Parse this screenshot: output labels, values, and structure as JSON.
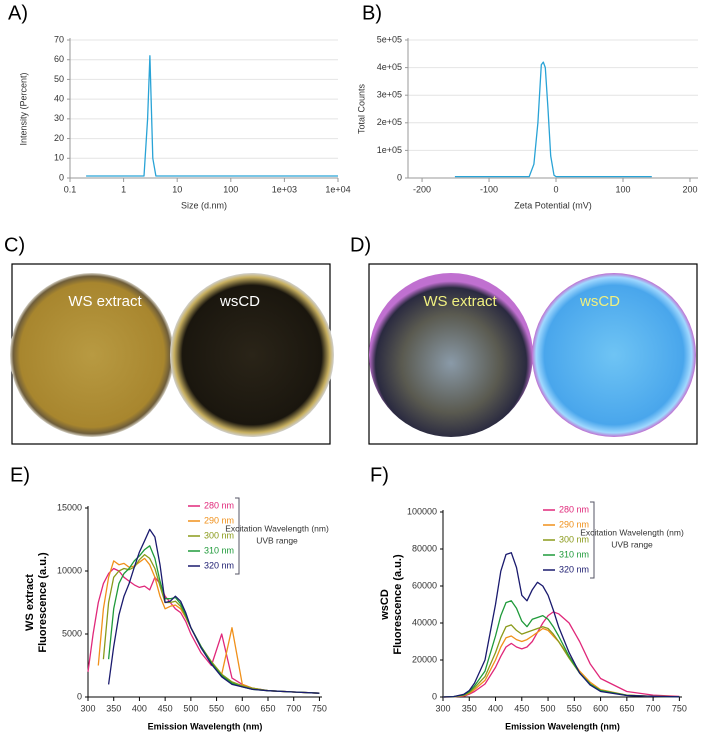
{
  "chart_data": [
    {
      "type": "line",
      "panel": "A)",
      "xlabel": "Size (d.nm)",
      "ylabel": "Intensity (Percent)",
      "xscale": "log",
      "xlim": [
        0.1,
        10000
      ],
      "ylim": [
        0,
        70
      ],
      "xticks": [
        0.1,
        1,
        10,
        100,
        {
          "value": 1000,
          "label": "1e+03"
        },
        {
          "value": 10000,
          "label": "1e+04"
        }
      ],
      "yticks": [
        0,
        10,
        20,
        30,
        40,
        50,
        60,
        70
      ],
      "grid": true,
      "x": [
        0.2,
        2.4,
        2.8,
        3.1,
        3.5,
        4,
        10,
        100,
        1000,
        10000
      ],
      "series": [
        {
          "color": "#29a3d6",
          "values": [
            1,
            1,
            30,
            62,
            10,
            1,
            1,
            1,
            1,
            1
          ]
        }
      ]
    },
    {
      "type": "line",
      "panel": "B)",
      "xlabel": "Zeta Potential (mV)",
      "ylabel": "Total Counts",
      "xlim": [
        -221,
        212
      ],
      "ylim": [
        0,
        500000
      ],
      "xticks": [
        -200,
        -100,
        0,
        100,
        200
      ],
      "yticks": [
        0,
        {
          "value": 100000,
          "label": "1e+05"
        },
        {
          "value": 200000,
          "label": "2e+05"
        },
        {
          "value": 300000,
          "label": "3e+05"
        },
        {
          "value": 400000,
          "label": "4e+05"
        },
        {
          "value": 500000,
          "label": "5e+05"
        }
      ],
      "grid": true,
      "x": [
        -151,
        -40,
        -33,
        -27,
        -22,
        -19,
        -16,
        -12,
        -8,
        -3,
        0,
        143
      ],
      "series": [
        {
          "color": "#29a3d6",
          "values": [
            5000,
            5000,
            50000,
            200000,
            410000,
            420000,
            400000,
            250000,
            80000,
            10000,
            5000,
            5000
          ]
        }
      ]
    },
    {
      "type": "line",
      "panel": "E)",
      "xlabel": "Emission Wavelength (nm)",
      "ylabel": [
        "WS extract",
        "Fluorescence (a.u.)"
      ],
      "xlim": [
        300,
        755
      ],
      "ylim": [
        0,
        15000
      ],
      "xticks": [
        300,
        350,
        400,
        450,
        500,
        550,
        600,
        650,
        700,
        750
      ],
      "yticks": [
        0,
        5000,
        10000,
        15000
      ],
      "grid": false,
      "legend_note": [
        "Excitation Wavelength (nm)",
        "UVB range"
      ],
      "x": [
        300,
        310,
        320,
        330,
        340,
        350,
        360,
        370,
        380,
        390,
        400,
        410,
        420,
        430,
        440,
        450,
        460,
        470,
        480,
        490,
        500,
        520,
        540,
        560,
        580,
        600,
        620,
        650,
        700,
        750
      ],
      "series": [
        {
          "name": "280 nm",
          "color": "#e0287a",
          "values": [
            2000,
            5000,
            7500,
            9000,
            9800,
            10200,
            10000,
            9500,
            9200,
            8900,
            8700,
            8800,
            8500,
            9500,
            9000,
            8000,
            7500,
            7000,
            6700,
            6000,
            5000,
            3500,
            2500,
            5000,
            1500,
            1000,
            700,
            500,
            400,
            300
          ]
        },
        {
          "name": "290 nm",
          "color": "#f0901a",
          "values": [
            null,
            null,
            2500,
            7000,
            9500,
            10800,
            10500,
            10600,
            10300,
            10400,
            10700,
            11000,
            10500,
            9500,
            8000,
            7000,
            7200,
            7300,
            7000,
            6300,
            5500,
            4000,
            2800,
            1800,
            5500,
            1000,
            700,
            500,
            400,
            300
          ]
        },
        {
          "name": "300 nm",
          "color": "#8a9a1a",
          "values": [
            null,
            null,
            null,
            3000,
            7500,
            9500,
            10000,
            10200,
            10100,
            10300,
            10900,
            11300,
            11000,
            10200,
            8800,
            7500,
            7500,
            7600,
            7200,
            6400,
            5500,
            4000,
            2800,
            1800,
            1200,
            900,
            700,
            500,
            400,
            300
          ]
        },
        {
          "name": "310 nm",
          "color": "#1f9a3a",
          "values": [
            null,
            null,
            null,
            null,
            3000,
            7000,
            9000,
            9800,
            10200,
            10800,
            11200,
            11700,
            12000,
            11000,
            9200,
            7800,
            7800,
            7900,
            7400,
            6500,
            5500,
            4000,
            2700,
            1700,
            1100,
            800,
            600,
            500,
            400,
            300
          ]
        },
        {
          "name": "320 nm",
          "color": "#1a1a6e",
          "values": [
            null,
            null,
            null,
            null,
            1000,
            4000,
            6500,
            8000,
            9000,
            10300,
            11500,
            12400,
            13300,
            12700,
            10500,
            7500,
            7600,
            8000,
            7600,
            6700,
            5500,
            3900,
            2600,
            1600,
            1000,
            800,
            600,
            500,
            400,
            300
          ]
        }
      ]
    },
    {
      "type": "line",
      "panel": "F)",
      "xlabel": "Emission Wavelength (nm)",
      "ylabel": [
        "wsCD",
        "Fluorescence (a.u.)"
      ],
      "xlim": [
        300,
        755
      ],
      "ylim": [
        0,
        100000
      ],
      "xticks": [
        300,
        350,
        400,
        450,
        500,
        550,
        600,
        650,
        700,
        750
      ],
      "yticks": [
        0,
        20000,
        40000,
        60000,
        80000,
        100000
      ],
      "grid": false,
      "legend_note": [
        "Excitation  Wavelength (nm)",
        "UVB range"
      ],
      "x": [
        300,
        320,
        340,
        350,
        360,
        380,
        400,
        410,
        420,
        430,
        440,
        450,
        460,
        470,
        480,
        490,
        500,
        510,
        520,
        540,
        560,
        580,
        600,
        650,
        700,
        750
      ],
      "series": [
        {
          "name": "280 nm",
          "color": "#e0287a",
          "values": [
            0,
            100,
            500,
            1500,
            3000,
            7000,
            16000,
            22000,
            27000,
            29000,
            27000,
            26000,
            27000,
            30000,
            35000,
            40000,
            44000,
            46000,
            45000,
            40000,
            30000,
            18000,
            10000,
            3000,
            1000,
            300
          ]
        },
        {
          "name": "290 nm",
          "color": "#f0901a",
          "values": [
            0,
            100,
            800,
            2000,
            4000,
            9000,
            20000,
            27000,
            32000,
            33000,
            31000,
            30000,
            31000,
            33000,
            35000,
            37000,
            36000,
            33000,
            30000,
            22000,
            14000,
            8000,
            4000,
            1000,
            400,
            200
          ]
        },
        {
          "name": "300 nm",
          "color": "#8a9a1a",
          "values": [
            0,
            100,
            1000,
            2500,
            5000,
            11000,
            24000,
            32000,
            38000,
            39000,
            36000,
            34000,
            35000,
            36000,
            37000,
            38000,
            37000,
            34000,
            30000,
            21000,
            13000,
            7000,
            3500,
            900,
            300,
            100
          ]
        },
        {
          "name": "310 nm",
          "color": "#1f9a3a",
          "values": [
            0,
            200,
            1200,
            3000,
            6000,
            14000,
            33000,
            44000,
            51000,
            52000,
            48000,
            41000,
            38000,
            42000,
            43000,
            44000,
            42000,
            38000,
            33000,
            22000,
            13000,
            7000,
            3500,
            900,
            300,
            100
          ]
        },
        {
          "name": "320 nm",
          "color": "#1a1a6e",
          "values": [
            0,
            200,
            1500,
            3500,
            7500,
            20000,
            50000,
            68000,
            77000,
            78000,
            70000,
            55000,
            52000,
            58000,
            62000,
            60000,
            55000,
            47000,
            38000,
            24000,
            13000,
            6500,
            3000,
            800,
            300,
            100
          ]
        }
      ]
    }
  ],
  "photos": [
    {
      "panel": "C)",
      "labels": [
        "WS extract",
        "wsCD"
      ]
    },
    {
      "panel": "D)",
      "labels": [
        "WS extract",
        "wsCD"
      ]
    }
  ]
}
